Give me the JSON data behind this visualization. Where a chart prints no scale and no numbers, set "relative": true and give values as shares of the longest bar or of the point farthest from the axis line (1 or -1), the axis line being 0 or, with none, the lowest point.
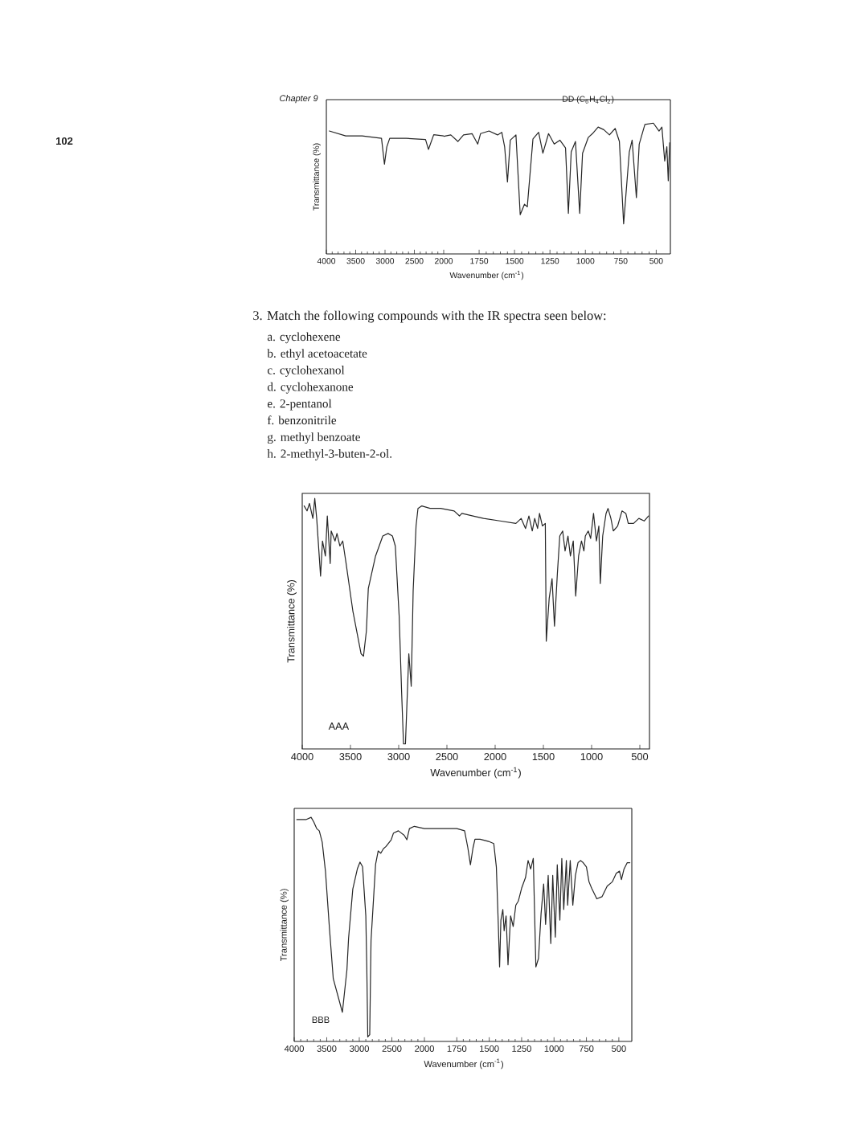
{
  "chart_data": [
    {
      "type": "line",
      "ylabel": "Transmittance (%)",
      "relative": true,
      "color": "#262626",
      "xlim": [
        4000,
        2000
      ],
      "xticks": [
        4000,
        3500,
        3000,
        2500,
        2000
      ],
      "x": [
        3950,
        3670,
        3390,
        3060,
        3010,
        2970,
        2920,
        2640,
        2310,
        2260,
        2170,
        2000
      ],
      "values": [
        1.0,
        0.96,
        0.96,
        0.94,
        0.73,
        0.87,
        0.94,
        0.94,
        0.93,
        0.85,
        0.97,
        0.96
      ],
      "annotations": [
        "Chapter 9",
        "102"
      ]
    },
    {
      "type": "line",
      "title": "DD (C$_{6}$H$_{4}$Cl$_{2}$)",
      "xlabel": "Wavenumber (cm$^{-1}$)",
      "relative": true,
      "color": "#262626",
      "xlim": [
        2000,
        400
      ],
      "xticks": [
        1750,
        1500,
        1250,
        1000,
        750,
        500
      ],
      "x": [
        2000,
        1950,
        1900,
        1860,
        1800,
        1760,
        1740,
        1680,
        1620,
        1590,
        1570,
        1550,
        1530,
        1490,
        1460,
        1430,
        1410,
        1370,
        1330,
        1300,
        1260,
        1220,
        1180,
        1140,
        1120,
        1100,
        1070,
        1040,
        1020,
        980,
        950,
        910,
        870,
        830,
        790,
        760,
        730,
        690,
        670,
        640,
        620,
        580,
        520,
        480,
        460,
        440,
        425,
        415,
        405
      ],
      "values": [
        0.9,
        0.91,
        0.86,
        0.91,
        0.92,
        0.84,
        0.92,
        0.94,
        0.91,
        0.93,
        0.82,
        0.55,
        0.87,
        0.91,
        0.3,
        0.38,
        0.36,
        0.88,
        0.93,
        0.77,
        0.92,
        0.84,
        0.87,
        0.81,
        0.31,
        0.78,
        0.86,
        0.31,
        0.77,
        0.89,
        0.92,
        0.97,
        0.95,
        0.91,
        0.96,
        0.86,
        0.23,
        0.78,
        0.87,
        0.43,
        0.84,
        0.99,
        1.0,
        0.94,
        0.97,
        0.71,
        0.82,
        0.56,
        0.85
      ]
    },
    {
      "type": "other",
      "title": "3. Match the following compounds with the IR spectra seen below:",
      "annotations": [
        "a. cyclohexene",
        "b. ethyl acetoacetate",
        "c. cyclohexanol",
        "d. cyclohexanone",
        "e. 2-pentanol",
        "f. benzonitrile",
        "g. methyl benzoate",
        "h. 2-methyl-3-buten-2-ol."
      ]
    },
    {
      "type": "line",
      "title": "AAA",
      "xlabel": "Wavenumber (cm$^{-1}$)",
      "ylabel": "Transmittance (%)",
      "relative": true,
      "color": "#262626",
      "xlim": [
        4000,
        400
      ],
      "xticks": [
        4000,
        3500,
        3000,
        2500,
        2000,
        1500,
        1000,
        500
      ],
      "x": [
        3980,
        3950,
        3925,
        3890,
        3870,
        3850,
        3810,
        3790,
        3760,
        3740,
        3710,
        3700,
        3660,
        3640,
        3610,
        3580,
        3545,
        3475,
        3390,
        3365,
        3335,
        3315,
        3240,
        3165,
        3110,
        3065,
        3035,
        2995,
        2970,
        2950,
        2930,
        2895,
        2870,
        2850,
        2820,
        2800,
        2760,
        2675,
        2565,
        2425,
        2370,
        2345,
        2230,
        2120,
        1950,
        1785,
        1730,
        1685,
        1650,
        1615,
        1590,
        1560,
        1540,
        1510,
        1480,
        1470,
        1440,
        1410,
        1385,
        1355,
        1330,
        1300,
        1275,
        1245,
        1220,
        1190,
        1165,
        1135,
        1105,
        1080,
        1065,
        1035,
        1010,
        980,
        950,
        925,
        910,
        885,
        850,
        830,
        800,
        775,
        730,
        685,
        645,
        620,
        565,
        510,
        455,
        410
      ],
      "values": [
        0.97,
        0.95,
        0.98,
        0.92,
        1.0,
        0.92,
        0.69,
        0.83,
        0.77,
        0.93,
        0.74,
        0.87,
        0.83,
        0.86,
        0.81,
        0.83,
        0.74,
        0.55,
        0.38,
        0.37,
        0.47,
        0.64,
        0.77,
        0.85,
        0.86,
        0.85,
        0.81,
        0.53,
        0.23,
        0.02,
        0.02,
        0.38,
        0.25,
        0.63,
        0.89,
        0.96,
        0.97,
        0.96,
        0.96,
        0.95,
        0.93,
        0.94,
        0.93,
        0.92,
        0.91,
        0.9,
        0.92,
        0.88,
        0.93,
        0.87,
        0.92,
        0.88,
        0.94,
        0.89,
        0.9,
        0.43,
        0.6,
        0.68,
        0.49,
        0.7,
        0.85,
        0.87,
        0.79,
        0.85,
        0.77,
        0.83,
        0.61,
        0.77,
        0.83,
        0.79,
        0.85,
        0.87,
        0.84,
        0.94,
        0.83,
        0.89,
        0.66,
        0.85,
        0.94,
        0.96,
        0.92,
        0.87,
        0.89,
        0.95,
        0.94,
        0.9,
        0.9,
        0.92,
        0.91,
        0.93
      ]
    },
    {
      "type": "line",
      "title": "BBB",
      "ylabel": "Transmittance (%)",
      "relative": true,
      "color": "#262626",
      "xlim": [
        4000,
        2000
      ],
      "xticks": [
        4000,
        3500,
        3000,
        2500,
        2000
      ],
      "x": [
        3960,
        3900,
        3820,
        3740,
        3700,
        3655,
        3615,
        3570,
        3520,
        3460,
        3400,
        3260,
        3190,
        3165,
        3100,
        3030,
        2990,
        2950,
        2900,
        2885,
        2870,
        2840,
        2820,
        2750,
        2710,
        2670,
        2630,
        2590,
        2510,
        2475,
        2400,
        2310,
        2270,
        2230,
        2155,
        2000
      ],
      "values": [
        0.99,
        0.99,
        0.99,
        1.0,
        0.98,
        0.95,
        0.94,
        0.89,
        0.76,
        0.51,
        0.28,
        0.13,
        0.32,
        0.46,
        0.68,
        0.77,
        0.8,
        0.78,
        0.56,
        0.33,
        0.02,
        0.03,
        0.45,
        0.79,
        0.85,
        0.84,
        0.86,
        0.87,
        0.9,
        0.93,
        0.94,
        0.92,
        0.9,
        0.95,
        0.96,
        0.95
      ]
    },
    {
      "type": "line",
      "xlabel": "Wavenumber (cm$^{-1}$)",
      "relative": true,
      "color": "#262626",
      "xlim": [
        2000,
        400
      ],
      "xticks": [
        1750,
        1500,
        1250,
        1000,
        750,
        500
      ],
      "x": [
        2000,
        1875,
        1750,
        1690,
        1665,
        1645,
        1625,
        1610,
        1570,
        1505,
        1465,
        1445,
        1430,
        1420,
        1410,
        1395,
        1385,
        1370,
        1355,
        1335,
        1315,
        1295,
        1275,
        1250,
        1220,
        1200,
        1180,
        1160,
        1140,
        1120,
        1100,
        1080,
        1065,
        1045,
        1025,
        1010,
        990,
        975,
        955,
        940,
        925,
        905,
        895,
        875,
        855,
        835,
        815,
        795,
        775,
        750,
        730,
        710,
        670,
        630,
        590,
        550,
        520,
        495,
        480,
        460,
        435,
        415
      ],
      "values": [
        1.0,
        1.0,
        1.0,
        0.99,
        0.91,
        0.83,
        0.91,
        0.95,
        0.95,
        0.94,
        0.93,
        0.82,
        0.55,
        0.35,
        0.57,
        0.62,
        0.52,
        0.59,
        0.36,
        0.59,
        0.54,
        0.64,
        0.66,
        0.72,
        0.77,
        0.85,
        0.81,
        0.86,
        0.35,
        0.39,
        0.6,
        0.74,
        0.55,
        0.78,
        0.46,
        0.78,
        0.49,
        0.83,
        0.57,
        0.86,
        0.62,
        0.85,
        0.64,
        0.85,
        0.64,
        0.78,
        0.84,
        0.85,
        0.84,
        0.82,
        0.75,
        0.72,
        0.67,
        0.68,
        0.73,
        0.75,
        0.79,
        0.8,
        0.76,
        0.81,
        0.84,
        0.84
      ]
    }
  ]
}
